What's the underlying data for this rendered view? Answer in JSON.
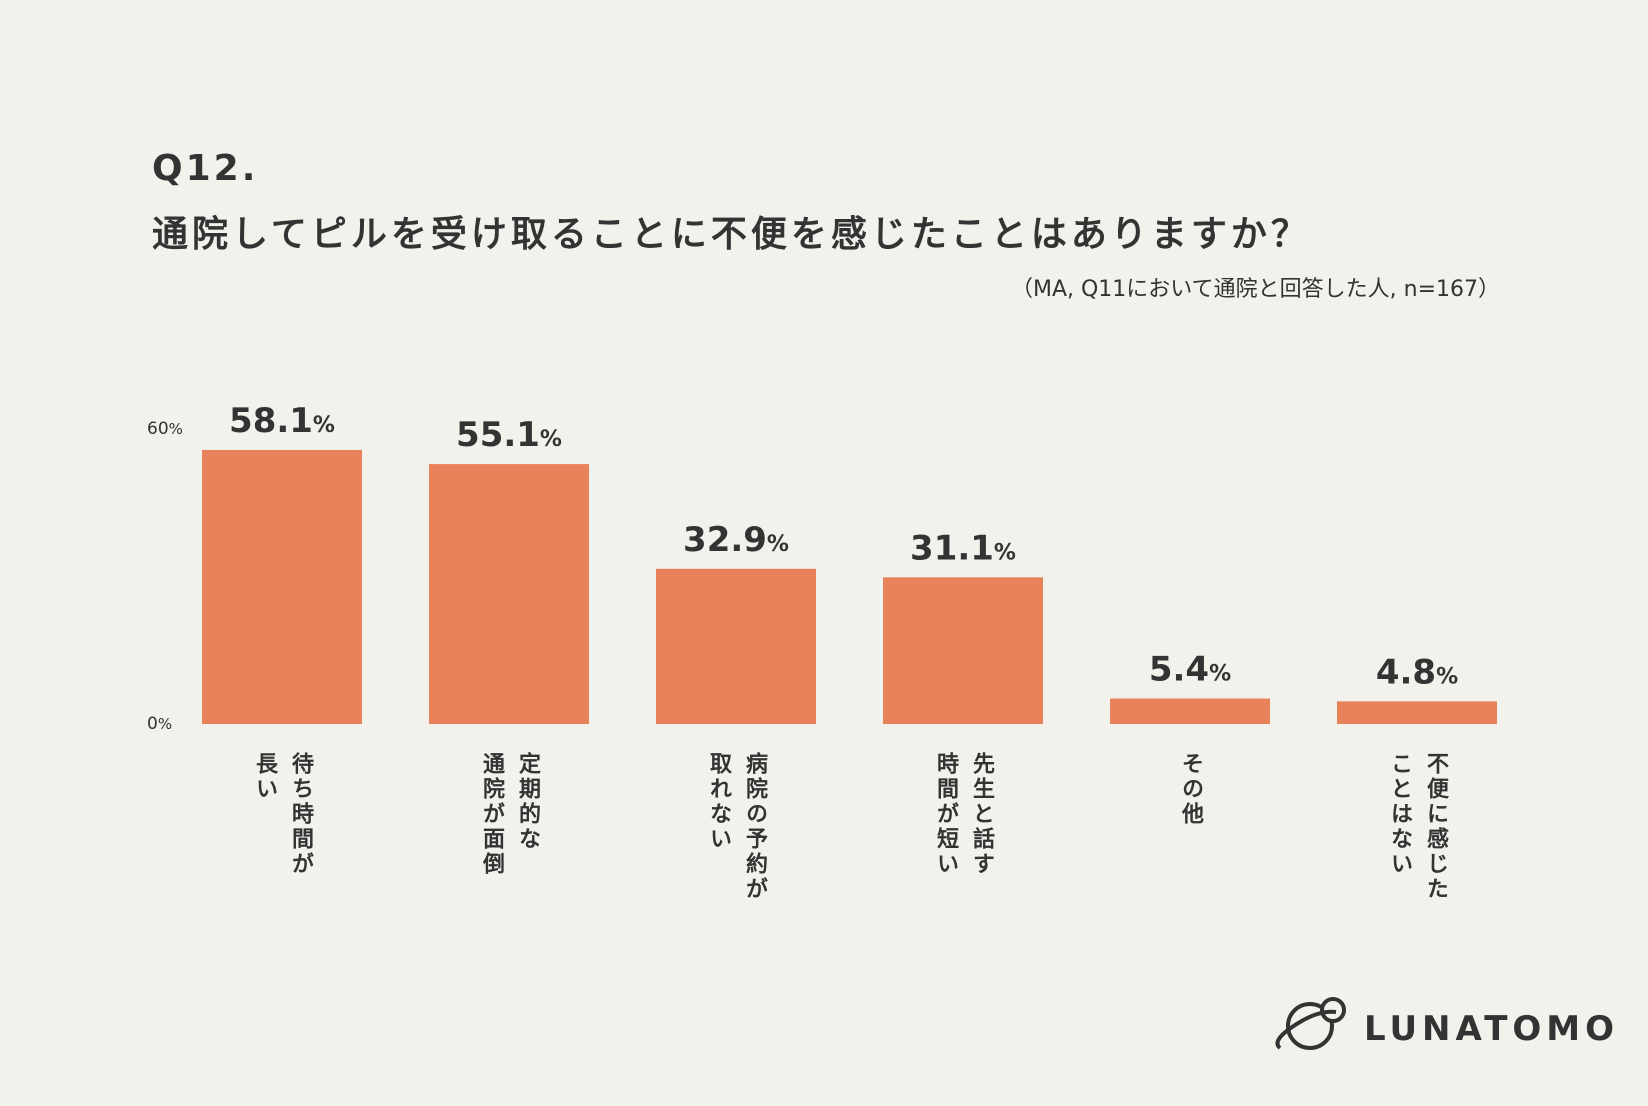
{
  "chart_data": {
    "type": "bar",
    "title": "Q12.",
    "subtitle": "通院してピルを受け取ることに不便を感じたことはありますか？",
    "note": "（MA, Q11において通院と回答した人, n=167）",
    "categories": [
      "待ち時間が\n長い",
      "定期的な\n通院が面倒",
      "病院の予約が\n取れない",
      "先生と話す\n時間が短い",
      "その他",
      "不便に感じた\nことはない"
    ],
    "values": [
      58.1,
      55.1,
      32.9,
      31.1,
      5.4,
      4.8
    ],
    "value_labels": [
      "58.1%",
      "55.1%",
      "32.9%",
      "31.1%",
      "5.4%",
      "4.8%"
    ],
    "color": "#e8825a",
    "ylim": [
      0,
      60
    ],
    "yticks": [
      {
        "value": 0,
        "label": "0%"
      },
      {
        "value": 60,
        "label": "60%"
      }
    ],
    "grid": false
  },
  "brand": "LUNATOMO"
}
